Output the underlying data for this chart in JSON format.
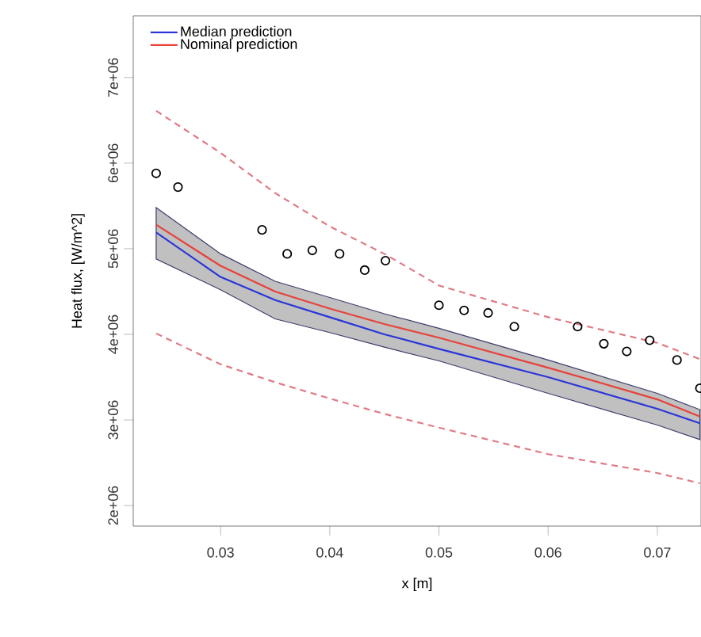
{
  "chart_data": {
    "type": "line",
    "xlabel": "x [m]",
    "ylabel": "Heat flux, [W/m^2]",
    "x": [
      0.0241,
      0.03,
      0.035,
      0.04,
      0.045,
      0.05,
      0.06,
      0.07,
      0.0739
    ],
    "series": [
      {
        "name": "Median prediction",
        "color": "#2a35d8",
        "values": [
          5190000,
          4670000,
          4400000,
          4200000,
          4000000,
          3830000,
          3500000,
          3130000,
          2960000
        ],
        "lower": [
          4880000,
          4520000,
          4180000,
          4020000,
          3850000,
          3690000,
          3310000,
          2940000,
          2770000
        ],
        "upper": [
          5480000,
          4940000,
          4620000,
          4430000,
          4240000,
          4070000,
          3700000,
          3310000,
          3120000
        ]
      },
      {
        "name": "Nominal prediction",
        "color": "#e8413a",
        "values": [
          5280000,
          4800000,
          4500000,
          4300000,
          4120000,
          3960000,
          3610000,
          3240000,
          3040000
        ]
      },
      {
        "color": "#e07a85",
        "line_style": "dashed",
        "values": [
          6610000,
          6120000,
          5650000,
          5260000,
          4940000,
          4570000,
          4200000,
          3900000,
          3710000
        ]
      },
      {
        "color": "#e07a85",
        "line_style": "dashed",
        "values": [
          4010000,
          3650000,
          3440000,
          3250000,
          3070000,
          2910000,
          2600000,
          2380000,
          2260000
        ]
      },
      {
        "type": "scatter",
        "marker": "circle",
        "color": "#000000",
        "x": [
          0.0241,
          0.0261,
          0.0338,
          0.0361,
          0.0384,
          0.0409,
          0.0432,
          0.0451,
          0.05,
          0.0523,
          0.0545,
          0.0569,
          0.0627,
          0.0651,
          0.0672,
          0.0693,
          0.0718,
          0.0739
        ],
        "values": [
          5880000,
          5720000,
          5220000,
          4940000,
          4980000,
          4940000,
          4750000,
          4860000,
          4340000,
          4280000,
          4250000,
          4090000,
          4090000,
          3890000,
          3800000,
          3930000,
          3700000,
          3370000
        ]
      }
    ],
    "xlim": [
      0.022,
      0.074
    ],
    "ylim": [
      1760000,
      7720000
    ],
    "xticks": [
      0.03,
      0.04,
      0.05,
      0.06,
      0.07
    ],
    "yticks": [
      {
        "value": 2000000,
        "label": "2e+06"
      },
      {
        "value": 3000000,
        "label": "3e+06"
      },
      {
        "value": 4000000,
        "label": "4e+06"
      },
      {
        "value": 5000000,
        "label": "5e+06"
      },
      {
        "value": 6000000,
        "label": "6e+06"
      },
      {
        "value": 7000000,
        "label": "7e+06"
      }
    ],
    "legend": "top left"
  }
}
